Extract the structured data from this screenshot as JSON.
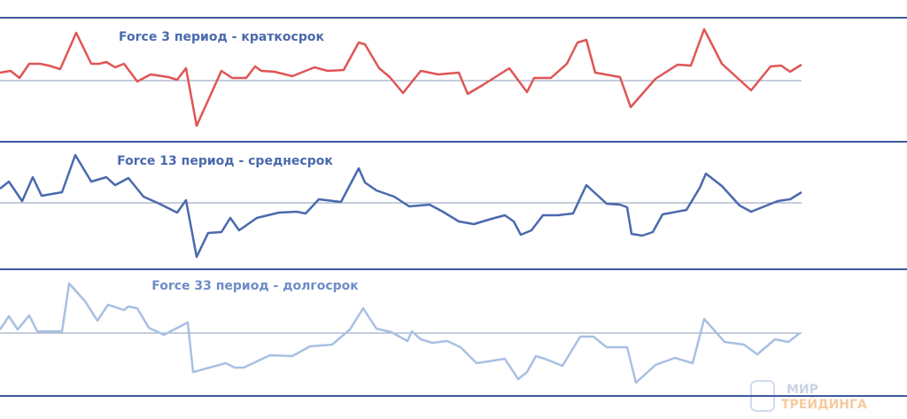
{
  "chart_data": [
    {
      "type": "line",
      "title": "Force 3 период - краткосрок",
      "xlim": [
        0,
        1024
      ],
      "ylim": [
        -69,
        71
      ],
      "zero_line": true,
      "x": [
        0,
        12,
        22,
        33,
        45,
        55,
        68,
        86,
        103,
        112,
        120,
        130,
        140,
        155,
        170,
        190,
        200,
        210,
        222,
        250,
        262,
        278,
        288,
        295,
        310,
        330,
        355,
        370,
        388,
        405,
        412,
        428,
        440,
        455,
        475,
        495,
        518,
        528,
        545,
        575,
        595,
        603,
        622,
        640,
        652,
        662,
        672,
        700,
        712,
        740,
        765,
        780,
        795,
        815,
        848,
        870,
        882,
        892,
        905
      ],
      "series": [
        {
          "color": "#e05555",
          "values": [
            9,
            11,
            3,
            19,
            19,
            17,
            13,
            54,
            19,
            19,
            21,
            15,
            19,
            -1,
            7,
            4,
            1,
            14,
            -51,
            11,
            3,
            3,
            16,
            11,
            10,
            5,
            15,
            11,
            12,
            43,
            41,
            14,
            4,
            -14,
            11,
            7,
            9,
            -15,
            -5,
            14,
            -13,
            3,
            3,
            19,
            43,
            46,
            9,
            4,
            -30,
            2,
            18,
            17,
            58,
            19,
            -11,
            16,
            17,
            10,
            18
          ]
        }
      ]
    },
    {
      "type": "line",
      "title": "Force 13 период - среднесрок",
      "xlim": [
        0,
        1024
      ],
      "ylim": [
        -75,
        69
      ],
      "zero_line": true,
      "x": [
        0,
        10,
        25,
        37,
        47,
        70,
        85,
        103,
        120,
        130,
        145,
        162,
        180,
        200,
        210,
        222,
        235,
        250,
        260,
        270,
        290,
        315,
        335,
        345,
        360,
        385,
        405,
        412,
        425,
        445,
        462,
        485,
        500,
        518,
        535,
        555,
        570,
        580,
        588,
        600,
        613,
        630,
        647,
        662,
        685,
        700,
        708,
        713,
        725,
        737,
        748,
        775,
        790,
        797,
        815,
        835,
        848,
        878,
        892,
        905
      ],
      "series": [
        {
          "color": "#4a69ad",
          "values": [
            16,
            24,
            2,
            29,
            8,
            12,
            54,
            24,
            29,
            20,
            28,
            7,
            -1,
            -11,
            3,
            -61,
            -34,
            -33,
            -17,
            -31,
            -17,
            -11,
            -10,
            -12,
            4,
            1,
            39,
            23,
            14,
            7,
            -4,
            -2,
            -10,
            -21,
            -24,
            -18,
            -14,
            -21,
            -36,
            -31,
            -14,
            -14,
            -12,
            20,
            -1,
            -2,
            -5,
            -35,
            -37,
            -33,
            -13,
            -8,
            17,
            33,
            19,
            -3,
            -10,
            2,
            4,
            12
          ]
        }
      ]
    },
    {
      "type": "line",
      "title": "Force 33 период - долгосрок",
      "xlim": [
        0,
        1024
      ],
      "ylim": [
        -71,
        72
      ],
      "zero_line": true,
      "x": [
        0,
        10,
        20,
        33,
        42,
        70,
        78,
        96,
        110,
        122,
        140,
        145,
        155,
        168,
        185,
        212,
        218,
        255,
        265,
        275,
        305,
        330,
        350,
        375,
        395,
        410,
        425,
        442,
        460,
        465,
        475,
        488,
        505,
        520,
        538,
        570,
        585,
        595,
        605,
        615,
        635,
        655,
        670,
        685,
        708,
        718,
        740,
        762,
        782,
        795,
        818,
        840,
        855,
        875,
        890,
        903
      ],
      "series": [
        {
          "color": "#a9bfe3",
          "values": [
            4,
            19,
            4,
            20,
            2,
            2,
            56,
            36,
            14,
            32,
            26,
            30,
            28,
            6,
            -2,
            12,
            -44,
            -34,
            -39,
            -39,
            -25,
            -26,
            -15,
            -13,
            4,
            28,
            5,
            1,
            -9,
            2,
            -7,
            -11,
            -9,
            -16,
            -34,
            -29,
            -52,
            -44,
            -26,
            -29,
            -37,
            -4,
            -4,
            -16,
            -16,
            -56,
            -36,
            -28,
            -34,
            16,
            -10,
            -13,
            -24,
            -7,
            -10,
            0
          ]
        }
      ]
    }
  ],
  "watermark": [
    "МИР",
    "ТРЕЙДИНГА"
  ]
}
